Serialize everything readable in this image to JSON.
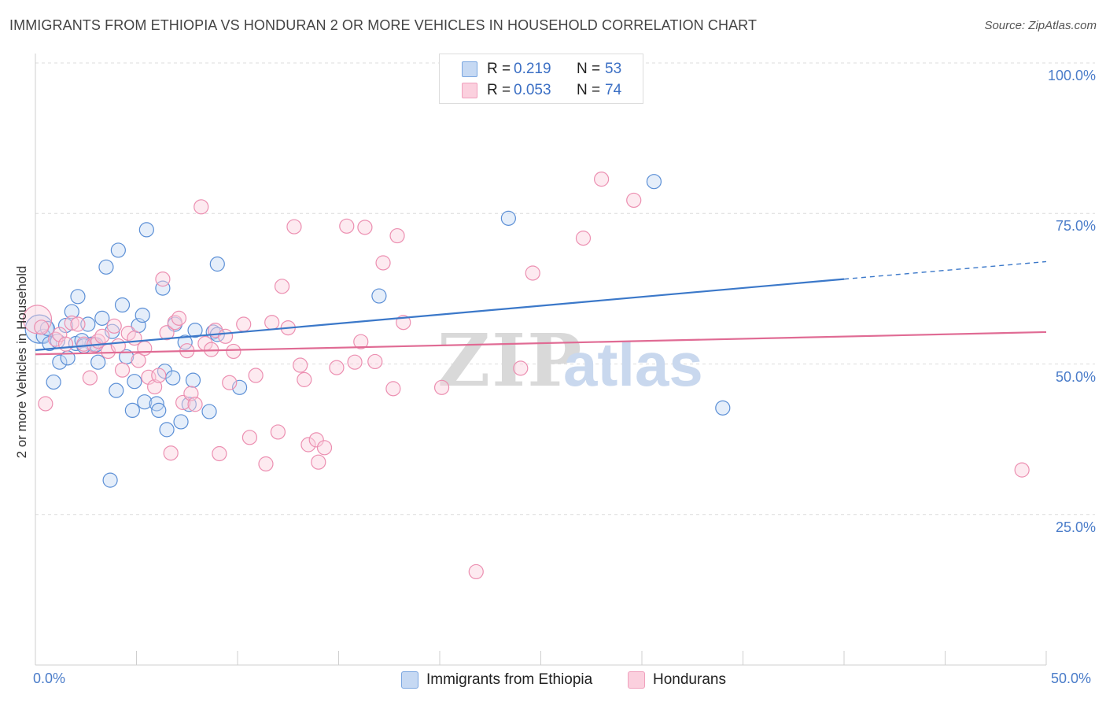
{
  "title": "IMMIGRANTS FROM ETHIOPIA VS HONDURAN 2 OR MORE VEHICLES IN HOUSEHOLD CORRELATION CHART",
  "source": "Source: ZipAtlas.com",
  "watermark": {
    "zip": "ZIP",
    "atlas": "atlas"
  },
  "legend": {
    "rows": [
      {
        "r_label": "R =",
        "r_value": "0.219",
        "n_label": "N =",
        "n_value": "53"
      },
      {
        "r_label": "R =",
        "r_value": "0.053",
        "n_label": "N =",
        "n_value": "74"
      }
    ]
  },
  "chart_data": {
    "type": "scatter",
    "title": "IMMIGRANTS FROM ETHIOPIA VS HONDURAN 2 OR MORE VEHICLES IN HOUSEHOLD CORRELATION CHART",
    "xlabel": "",
    "ylabel": "2 or more Vehicles in Household",
    "xlim": [
      0,
      50
    ],
    "ylim": [
      0,
      100
    ],
    "x_ticks": [
      "0.0%",
      "50.0%"
    ],
    "y_ticks": [
      "25.0%",
      "50.0%",
      "75.0%",
      "100.0%"
    ],
    "grid": true,
    "legend_position": "top-center",
    "series": [
      {
        "name": "Immigrants from Ethiopia",
        "color": "#7aa6e0",
        "line_color": "#3b78c9",
        "trend": {
          "x0": 0,
          "y0": 52.3,
          "x1": 40,
          "y1": 64.1,
          "dash_to_x": 50,
          "dash_to_y": 67.0
        },
        "points": [
          [
            0.2,
            55.8
          ],
          [
            0.4,
            54.6
          ],
          [
            0.6,
            55.9
          ],
          [
            0.7,
            53.4
          ],
          [
            0.9,
            47.0
          ],
          [
            1.1,
            53.8
          ],
          [
            1.2,
            50.3
          ],
          [
            1.5,
            56.4
          ],
          [
            1.6,
            51.0
          ],
          [
            1.8,
            58.7
          ],
          [
            2.0,
            53.4
          ],
          [
            2.1,
            61.2
          ],
          [
            2.3,
            53.9
          ],
          [
            2.6,
            56.6
          ],
          [
            2.8,
            53.3
          ],
          [
            3.1,
            50.3
          ],
          [
            3.3,
            57.6
          ],
          [
            3.5,
            66.1
          ],
          [
            3.7,
            30.7
          ],
          [
            3.8,
            55.4
          ],
          [
            4.0,
            45.6
          ],
          [
            4.1,
            68.9
          ],
          [
            4.3,
            59.8
          ],
          [
            4.5,
            51.2
          ],
          [
            4.8,
            42.3
          ],
          [
            4.9,
            47.1
          ],
          [
            5.1,
            56.4
          ],
          [
            5.3,
            58.1
          ],
          [
            5.5,
            72.3
          ],
          [
            5.4,
            43.7
          ],
          [
            6.0,
            43.4
          ],
          [
            6.1,
            42.3
          ],
          [
            6.3,
            62.6
          ],
          [
            6.4,
            48.8
          ],
          [
            6.5,
            39.1
          ],
          [
            6.8,
            47.7
          ],
          [
            6.9,
            56.6
          ],
          [
            7.2,
            40.4
          ],
          [
            7.4,
            53.6
          ],
          [
            7.6,
            43.3
          ],
          [
            7.8,
            47.3
          ],
          [
            7.9,
            55.6
          ],
          [
            8.6,
            42.1
          ],
          [
            8.8,
            55.3
          ],
          [
            9.0,
            54.9
          ],
          [
            9.0,
            66.6
          ],
          [
            10.1,
            46.1
          ],
          [
            17.0,
            61.3
          ],
          [
            23.4,
            74.2
          ],
          [
            30.6,
            80.3
          ],
          [
            34.0,
            42.7
          ],
          [
            3.0,
            53.2
          ],
          [
            2.4,
            53.0
          ]
        ]
      },
      {
        "name": "Hondurans",
        "color": "#f0a0bd",
        "line_color": "#e06b94",
        "trend": {
          "x0": 0,
          "y0": 51.6,
          "x1": 50,
          "y1": 55.3
        },
        "points": [
          [
            0.1,
            57.4
          ],
          [
            0.3,
            56.1
          ],
          [
            0.5,
            43.4
          ],
          [
            1.0,
            54.1
          ],
          [
            1.2,
            54.9
          ],
          [
            1.5,
            53.3
          ],
          [
            1.8,
            56.8
          ],
          [
            2.1,
            56.6
          ],
          [
            2.4,
            53.3
          ],
          [
            2.7,
            47.7
          ],
          [
            2.9,
            53.2
          ],
          [
            3.1,
            53.8
          ],
          [
            3.3,
            54.6
          ],
          [
            3.6,
            52.1
          ],
          [
            3.9,
            56.3
          ],
          [
            4.1,
            53.0
          ],
          [
            4.3,
            49.0
          ],
          [
            4.6,
            55.1
          ],
          [
            4.9,
            54.3
          ],
          [
            5.1,
            50.6
          ],
          [
            5.4,
            52.6
          ],
          [
            5.6,
            47.8
          ],
          [
            5.9,
            46.2
          ],
          [
            6.1,
            48.1
          ],
          [
            6.3,
            64.1
          ],
          [
            6.5,
            55.2
          ],
          [
            6.7,
            35.2
          ],
          [
            6.9,
            56.9
          ],
          [
            7.1,
            57.6
          ],
          [
            7.3,
            43.6
          ],
          [
            7.5,
            52.2
          ],
          [
            7.7,
            45.1
          ],
          [
            7.9,
            43.3
          ],
          [
            8.2,
            76.1
          ],
          [
            8.4,
            53.4
          ],
          [
            8.7,
            52.4
          ],
          [
            8.9,
            55.6
          ],
          [
            9.1,
            35.1
          ],
          [
            9.4,
            54.6
          ],
          [
            9.6,
            46.9
          ],
          [
            9.8,
            52.1
          ],
          [
            10.3,
            56.6
          ],
          [
            10.6,
            37.8
          ],
          [
            10.9,
            48.1
          ],
          [
            11.4,
            33.4
          ],
          [
            11.7,
            56.9
          ],
          [
            12.0,
            38.7
          ],
          [
            12.2,
            62.9
          ],
          [
            12.5,
            56.0
          ],
          [
            12.8,
            72.8
          ],
          [
            13.1,
            49.8
          ],
          [
            13.3,
            47.4
          ],
          [
            13.5,
            36.6
          ],
          [
            13.9,
            37.4
          ],
          [
            14.0,
            33.7
          ],
          [
            14.3,
            36.1
          ],
          [
            14.9,
            49.4
          ],
          [
            15.4,
            72.9
          ],
          [
            15.8,
            50.3
          ],
          [
            16.1,
            53.7
          ],
          [
            16.3,
            72.7
          ],
          [
            16.8,
            50.4
          ],
          [
            17.2,
            66.8
          ],
          [
            17.7,
            45.9
          ],
          [
            17.9,
            71.3
          ],
          [
            18.2,
            56.9
          ],
          [
            20.1,
            46.1
          ],
          [
            24.0,
            49.3
          ],
          [
            24.6,
            65.1
          ],
          [
            27.1,
            70.9
          ],
          [
            28.0,
            80.7
          ],
          [
            29.6,
            77.2
          ],
          [
            48.8,
            32.4
          ],
          [
            21.8,
            15.5
          ]
        ]
      }
    ]
  }
}
